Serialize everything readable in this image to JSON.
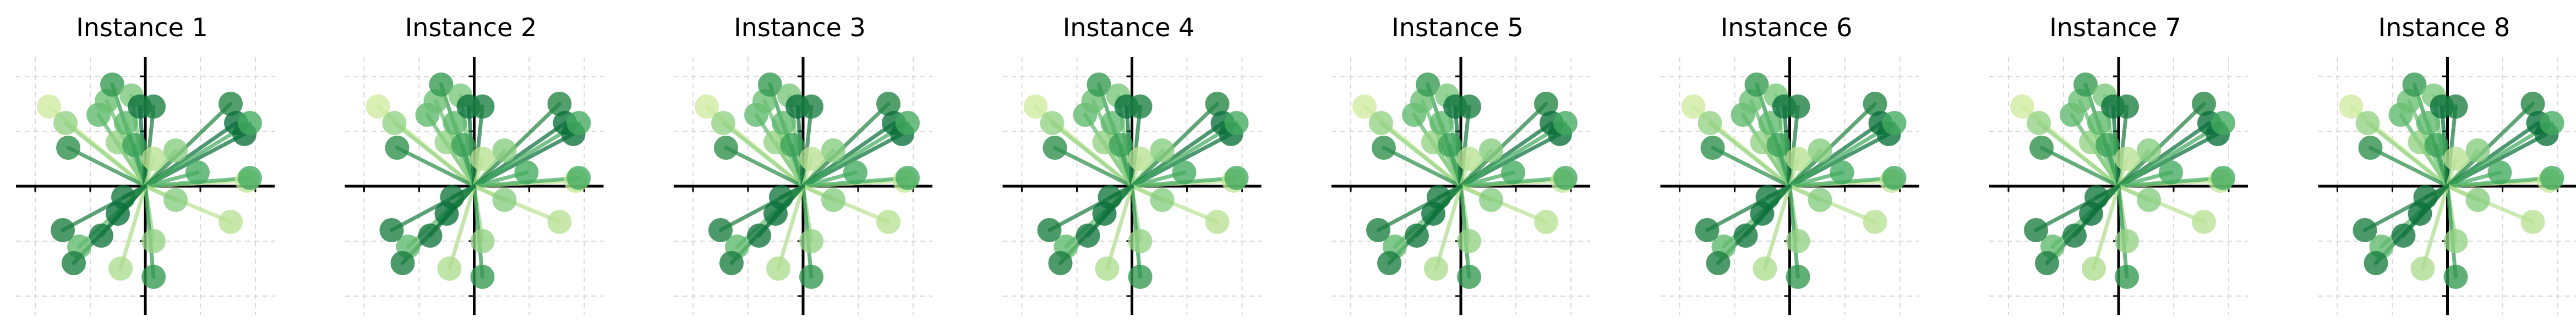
{
  "chart_data": {
    "type": "scatter",
    "layout": "1 row × 8 identical panels",
    "grid": true,
    "axes_through_origin": true,
    "xlim": [
      -4.7,
      4.7
    ],
    "ylim": [
      -4.7,
      4.7
    ],
    "xticks": [
      -4,
      -2,
      0,
      2,
      4
    ],
    "yticks": [
      -4,
      -2,
      0,
      2,
      4
    ],
    "colormap": [
      "#d9f0a3",
      "#addd8e",
      "#78c679",
      "#41ab5d",
      "#238443",
      "#006837"
    ],
    "panels": [
      {
        "title": "Instance 1"
      },
      {
        "title": "Instance 2"
      },
      {
        "title": "Instance 3"
      },
      {
        "title": "Instance 4"
      },
      {
        "title": "Instance 5"
      },
      {
        "title": "Instance 6"
      },
      {
        "title": "Instance 7"
      },
      {
        "title": "Instance 8"
      }
    ],
    "points": [
      {
        "x": -3.5,
        "y": 2.9,
        "shade": 0.05
      },
      {
        "x": -2.9,
        "y": 2.3,
        "shade": 0.3
      },
      {
        "x": -2.8,
        "y": 1.4,
        "shade": 0.75
      },
      {
        "x": -1.7,
        "y": 2.6,
        "shade": 0.5
      },
      {
        "x": -1.4,
        "y": 3.1,
        "shade": 0.45
      },
      {
        "x": -1.2,
        "y": 3.7,
        "shade": 0.7
      },
      {
        "x": -1.0,
        "y": 1.6,
        "shade": 0.3
      },
      {
        "x": -0.7,
        "y": 2.3,
        "shade": 0.5
      },
      {
        "x": -0.5,
        "y": 3.3,
        "shade": 0.4
      },
      {
        "x": -0.4,
        "y": 1.5,
        "shade": 0.65
      },
      {
        "x": -0.2,
        "y": 2.9,
        "shade": 0.95
      },
      {
        "x": 0.3,
        "y": 2.9,
        "shade": 0.85
      },
      {
        "x": 0.3,
        "y": 1.0,
        "shade": 0.15
      },
      {
        "x": 1.1,
        "y": 1.3,
        "shade": 0.35
      },
      {
        "x": 1.9,
        "y": 0.5,
        "shade": 0.6
      },
      {
        "x": 3.1,
        "y": 3.0,
        "shade": 0.8
      },
      {
        "x": 3.3,
        "y": 2.3,
        "shade": 0.95
      },
      {
        "x": 3.6,
        "y": 1.9,
        "shade": 0.95
      },
      {
        "x": 3.7,
        "y": 0.2,
        "shade": 0.1
      },
      {
        "x": 3.8,
        "y": 2.3,
        "shade": 0.6
      },
      {
        "x": 3.8,
        "y": 0.3,
        "shade": 0.6
      },
      {
        "x": 1.1,
        "y": -0.5,
        "shade": 0.35
      },
      {
        "x": 3.1,
        "y": -1.3,
        "shade": 0.15
      },
      {
        "x": 0.3,
        "y": -2.0,
        "shade": 0.3
      },
      {
        "x": 0.3,
        "y": -3.3,
        "shade": 0.7
      },
      {
        "x": -0.8,
        "y": -0.4,
        "shade": 0.9
      },
      {
        "x": -1.0,
        "y": -1.0,
        "shade": 0.95
      },
      {
        "x": -1.6,
        "y": -1.8,
        "shade": 0.9
      },
      {
        "x": -0.9,
        "y": -3.0,
        "shade": 0.2
      },
      {
        "x": -2.4,
        "y": -2.2,
        "shade": 0.5
      },
      {
        "x": -3.0,
        "y": -1.6,
        "shade": 0.85
      },
      {
        "x": -2.6,
        "y": -2.8,
        "shade": 0.85
      }
    ]
  }
}
